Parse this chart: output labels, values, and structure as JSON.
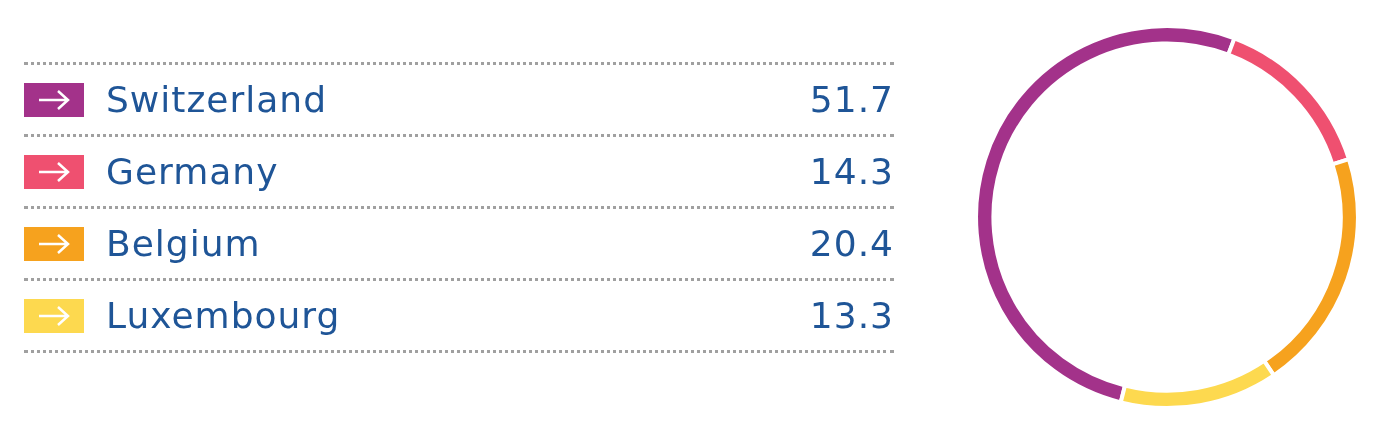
{
  "chart_data": {
    "type": "donut",
    "categories": [
      "Switzerland",
      "Germany",
      "Belgium",
      "Luxembourg"
    ],
    "values": [
      51.7,
      14.3,
      20.4,
      13.3
    ],
    "colors": [
      "#a3328a",
      "#ef5070",
      "#f6a21e",
      "#fdd94f"
    ],
    "data_labels": true,
    "legend": "left"
  }
}
